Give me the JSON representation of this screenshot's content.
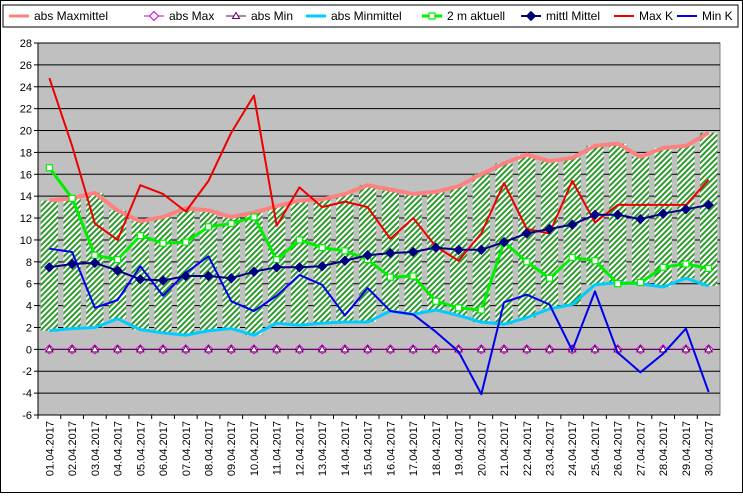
{
  "chart_data": {
    "type": "line",
    "ylim": [
      -6,
      28
    ],
    "yticks": [
      -6,
      -4,
      -2,
      0,
      2,
      4,
      6,
      8,
      10,
      12,
      14,
      16,
      18,
      20,
      22,
      24,
      26,
      28
    ],
    "grid": true,
    "legend_position": "top",
    "plot_background": "#c0c0c0",
    "band": {
      "lower_series": "abs Minmittel",
      "upper_series": "abs Maxmittel",
      "fill": "green-hatch"
    },
    "categories": [
      "01.04.2017",
      "02.04.2017",
      "03.04.2017",
      "04.04.2017",
      "05.04.2017",
      "06.04.2017",
      "07.04.2017",
      "08.04.2017",
      "09.04.2017",
      "10.04.2017",
      "11.04.2017",
      "12.04.2017",
      "13.04.2017",
      "14.04.2017",
      "15.04.2017",
      "16.04.2017",
      "17.04.2017",
      "18.04.2017",
      "19.04.2017",
      "20.04.2017",
      "21.04.2017",
      "22.04.2017",
      "23.04.2017",
      "24.04.2017",
      "25.04.2017",
      "26.04.2017",
      "27.04.2017",
      "28.04.2017",
      "29.04.2017",
      "30.04.2017"
    ],
    "series": [
      {
        "name": "abs Maxmittel",
        "color": "#ff8080",
        "marker": "none",
        "width": 4,
        "values": [
          13.6,
          13.8,
          14.3,
          12.7,
          11.7,
          12.1,
          12.9,
          12.7,
          12.1,
          12.5,
          13.1,
          13.6,
          13.7,
          14.2,
          15.0,
          14.6,
          14.2,
          14.4,
          14.9,
          16.0,
          17.0,
          17.8,
          17.2,
          17.5,
          18.6,
          18.8,
          17.6,
          18.4,
          18.6,
          19.8
        ]
      },
      {
        "name": "abs Max",
        "color": "#cc00cc",
        "marker": "diamond-open",
        "width": 1,
        "values": [
          0,
          0,
          0,
          0,
          0,
          0,
          0,
          0,
          0,
          0,
          0,
          0,
          0,
          0,
          0,
          0,
          0,
          0,
          0,
          0,
          0,
          0,
          0,
          0,
          0,
          0,
          0,
          0,
          0,
          0
        ]
      },
      {
        "name": "abs Min",
        "color": "#660066",
        "marker": "triangle-open",
        "width": 1,
        "values": [
          0,
          0,
          0,
          0,
          0,
          0,
          0,
          0,
          0,
          0,
          0,
          0,
          0,
          0,
          0,
          0,
          0,
          0,
          0,
          0,
          0,
          0,
          0,
          0,
          0,
          0,
          0,
          0,
          0,
          0
        ]
      },
      {
        "name": "abs Minmittel",
        "color": "#00ccff",
        "marker": "none",
        "width": 3,
        "values": [
          1.7,
          1.9,
          2.0,
          2.8,
          1.8,
          1.5,
          1.3,
          1.7,
          1.9,
          1.3,
          2.4,
          2.2,
          2.4,
          2.5,
          2.5,
          3.5,
          3.2,
          3.6,
          3.1,
          2.5,
          2.3,
          2.9,
          3.7,
          4.1,
          5.9,
          6.1,
          6.0,
          5.7,
          6.5,
          5.8
        ]
      },
      {
        "name": "2 m aktuell",
        "color": "#00ee00",
        "marker": "square-open",
        "width": 3,
        "values": [
          16.6,
          13.8,
          8.6,
          8.2,
          10.4,
          9.7,
          9.8,
          11.2,
          11.5,
          12.1,
          8.2,
          10.0,
          9.3,
          9.0,
          8.2,
          6.6,
          6.7,
          4.4,
          3.8,
          3.6,
          9.8,
          8.0,
          6.5,
          8.4,
          8.1,
          6.0,
          6.1,
          7.5,
          7.8,
          7.4
        ]
      },
      {
        "name": "mittl Mittel",
        "color": "#000080",
        "marker": "diamond",
        "width": 2,
        "values": [
          7.5,
          7.8,
          7.9,
          7.2,
          6.4,
          6.3,
          6.7,
          6.7,
          6.5,
          7.1,
          7.5,
          7.5,
          7.6,
          8.1,
          8.6,
          8.8,
          8.9,
          9.3,
          9.1,
          9.1,
          9.8,
          10.6,
          11.0,
          11.4,
          12.3,
          12.3,
          11.9,
          12.4,
          12.8,
          13.2
        ]
      },
      {
        "name": "Max K",
        "color": "#ee0000",
        "marker": "none",
        "width": 2,
        "values": [
          24.8,
          18.6,
          11.5,
          10.0,
          15.0,
          14.2,
          12.6,
          15.4,
          19.8,
          23.2,
          11.3,
          14.8,
          13.0,
          13.5,
          13.0,
          10.1,
          12.0,
          9.4,
          8.1,
          10.6,
          15.2,
          11.0,
          10.6,
          15.4,
          11.6,
          13.2,
          13.2,
          13.2,
          13.2,
          15.5
        ]
      },
      {
        "name": "Min K",
        "color": "#0000ee",
        "marker": "none",
        "width": 2,
        "values": [
          9.2,
          8.9,
          3.8,
          4.5,
          7.6,
          4.9,
          7.0,
          8.5,
          4.4,
          3.5,
          4.9,
          6.8,
          5.9,
          3.1,
          5.6,
          3.5,
          3.2,
          1.6,
          -0.2,
          -4.1,
          4.3,
          5.0,
          4.1,
          -0.1,
          5.3,
          -0.3,
          -2.1,
          -0.4,
          1.9,
          -3.9
        ]
      }
    ]
  }
}
